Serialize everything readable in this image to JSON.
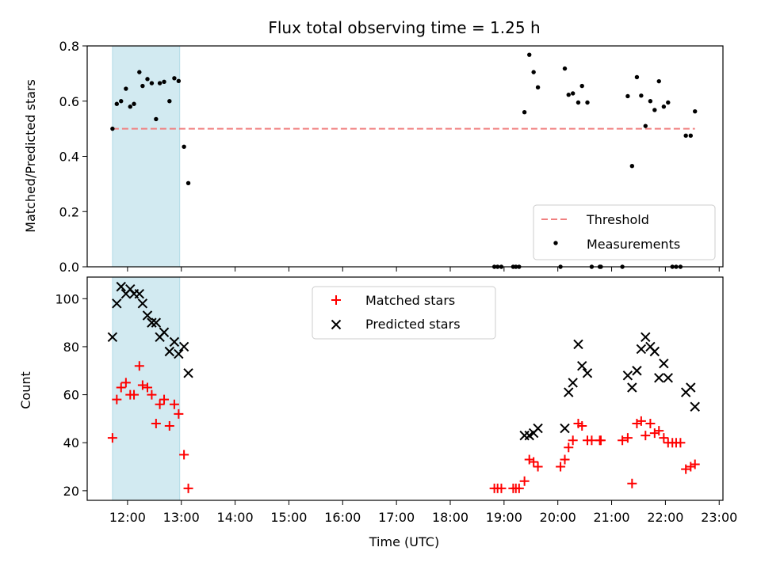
{
  "chart_data": [
    {
      "type": "scatter",
      "title": "Flux total observing time = 1.25 h",
      "xlabel": "",
      "ylabel": "Matched/Predicted stars",
      "ylim": [
        0,
        0.8
      ],
      "yticks": [
        0.0,
        0.2,
        0.4,
        0.6,
        0.8
      ],
      "ytick_labels": [
        "0.0",
        "0.2",
        "0.4",
        "0.6",
        "0.8"
      ],
      "xlim": [
        11.25,
        23.07
      ],
      "highlight_span": {
        "x": [
          11.72,
          12.97
        ],
        "color": "#add8e6"
      },
      "threshold": {
        "name": "Threshold",
        "y": 0.5,
        "x": [
          11.72,
          22.55
        ],
        "color": "#f08080"
      },
      "legend": {
        "placement": "lower-right",
        "entries": [
          "Threshold",
          "Measurements"
        ]
      },
      "series": [
        {
          "name": "Measurements",
          "color": "#000000",
          "points": [
            [
              11.72,
              0.5
            ],
            [
              11.8,
              0.59
            ],
            [
              11.88,
              0.6
            ],
            [
              11.97,
              0.645
            ],
            [
              12.05,
              0.58
            ],
            [
              12.12,
              0.59
            ],
            [
              12.22,
              0.705
            ],
            [
              12.28,
              0.655
            ],
            [
              12.37,
              0.68
            ],
            [
              12.45,
              0.665
            ],
            [
              12.53,
              0.535
            ],
            [
              12.6,
              0.665
            ],
            [
              12.68,
              0.67
            ],
            [
              12.78,
              0.6
            ],
            [
              12.87,
              0.683
            ],
            [
              12.95,
              0.673
            ],
            [
              13.05,
              0.435
            ],
            [
              13.13,
              0.303
            ],
            [
              18.82,
              0
            ],
            [
              18.88,
              0
            ],
            [
              18.95,
              0
            ],
            [
              19.17,
              0
            ],
            [
              19.22,
              0
            ],
            [
              19.28,
              0
            ],
            [
              19.38,
              0.56
            ],
            [
              19.47,
              0.768
            ],
            [
              19.55,
              0.705
            ],
            [
              19.63,
              0.65
            ],
            [
              20.05,
              0
            ],
            [
              20.13,
              0.718
            ],
            [
              20.2,
              0.623
            ],
            [
              20.28,
              0.628
            ],
            [
              20.38,
              0.595
            ],
            [
              20.45,
              0.655
            ],
            [
              20.55,
              0.595
            ],
            [
              20.63,
              0
            ],
            [
              20.78,
              0
            ],
            [
              20.8,
              0
            ],
            [
              21.2,
              0
            ],
            [
              21.3,
              0.618
            ],
            [
              21.38,
              0.365
            ],
            [
              21.47,
              0.687
            ],
            [
              21.55,
              0.62
            ],
            [
              21.63,
              0.51
            ],
            [
              21.72,
              0.6
            ],
            [
              21.8,
              0.568
            ],
            [
              21.88,
              0.672
            ],
            [
              21.97,
              0.58
            ],
            [
              22.05,
              0.595
            ],
            [
              22.13,
              0
            ],
            [
              22.2,
              0
            ],
            [
              22.28,
              0
            ],
            [
              22.38,
              0.475
            ],
            [
              22.47,
              0.475
            ],
            [
              22.55,
              0.563
            ]
          ]
        }
      ]
    },
    {
      "type": "scatter",
      "title": "",
      "xlabel": "Time (UTC)",
      "ylabel": "Count",
      "ylim": [
        16,
        109
      ],
      "yticks": [
        20,
        40,
        60,
        80,
        100
      ],
      "ytick_labels": [
        "20",
        "40",
        "60",
        "80",
        "100"
      ],
      "xlim": [
        11.25,
        23.07
      ],
      "xticks": [
        12,
        13,
        14,
        15,
        16,
        17,
        18,
        19,
        20,
        21,
        22,
        23
      ],
      "xtick_labels": [
        "12:00",
        "13:00",
        "14:00",
        "15:00",
        "16:00",
        "17:00",
        "18:00",
        "19:00",
        "20:00",
        "21:00",
        "22:00",
        "23:00"
      ],
      "highlight_span": {
        "x": [
          11.72,
          12.97
        ],
        "color": "#add8e6"
      },
      "legend": {
        "placement": "upper-center",
        "entries": [
          "Matched stars",
          "Predicted stars"
        ]
      },
      "series": [
        {
          "name": "Matched stars",
          "marker": "+",
          "color": "#ff0000",
          "points": [
            [
              11.72,
              42
            ],
            [
              11.8,
              58
            ],
            [
              11.88,
              63
            ],
            [
              11.97,
              65
            ],
            [
              12.05,
              60
            ],
            [
              12.12,
              60
            ],
            [
              12.22,
              72
            ],
            [
              12.28,
              64
            ],
            [
              12.37,
              63
            ],
            [
              12.45,
              60
            ],
            [
              12.53,
              48
            ],
            [
              12.6,
              56
            ],
            [
              12.68,
              58
            ],
            [
              12.78,
              47
            ],
            [
              12.87,
              56
            ],
            [
              12.95,
              52
            ],
            [
              13.05,
              35
            ],
            [
              13.13,
              21
            ],
            [
              18.82,
              21
            ],
            [
              18.88,
              21
            ],
            [
              18.95,
              21
            ],
            [
              19.17,
              21
            ],
            [
              19.22,
              21
            ],
            [
              19.28,
              21
            ],
            [
              19.38,
              24
            ],
            [
              19.47,
              33
            ],
            [
              19.55,
              32
            ],
            [
              19.63,
              30
            ],
            [
              20.05,
              30
            ],
            [
              20.13,
              33
            ],
            [
              20.2,
              38
            ],
            [
              20.28,
              41
            ],
            [
              20.38,
              48
            ],
            [
              20.45,
              47
            ],
            [
              20.55,
              41
            ],
            [
              20.63,
              41
            ],
            [
              20.78,
              41
            ],
            [
              20.8,
              41
            ],
            [
              21.2,
              41
            ],
            [
              21.3,
              42
            ],
            [
              21.38,
              23
            ],
            [
              21.47,
              48
            ],
            [
              21.55,
              49
            ],
            [
              21.63,
              43
            ],
            [
              21.72,
              48
            ],
            [
              21.8,
              44
            ],
            [
              21.88,
              45
            ],
            [
              21.97,
              42
            ],
            [
              22.05,
              40
            ],
            [
              22.13,
              40
            ],
            [
              22.2,
              40
            ],
            [
              22.28,
              40
            ],
            [
              22.38,
              29
            ],
            [
              22.47,
              30
            ],
            [
              22.55,
              31
            ]
          ]
        },
        {
          "name": "Predicted stars",
          "marker": "x",
          "color": "#000000",
          "points": [
            [
              11.72,
              84
            ],
            [
              11.8,
              98
            ],
            [
              11.88,
              105
            ],
            [
              11.97,
              102
            ],
            [
              12.05,
              104
            ],
            [
              12.12,
              102
            ],
            [
              12.22,
              102
            ],
            [
              12.28,
              98
            ],
            [
              12.37,
              93
            ],
            [
              12.45,
              90
            ],
            [
              12.53,
              90
            ],
            [
              12.6,
              84
            ],
            [
              12.68,
              86
            ],
            [
              12.78,
              78
            ],
            [
              12.87,
              82
            ],
            [
              12.95,
              77
            ],
            [
              13.05,
              80
            ],
            [
              13.13,
              69
            ],
            [
              19.38,
              43
            ],
            [
              19.47,
              43
            ],
            [
              19.55,
              44
            ],
            [
              19.63,
              46
            ],
            [
              20.13,
              46
            ],
            [
              20.2,
              61
            ],
            [
              20.28,
              65
            ],
            [
              20.38,
              81
            ],
            [
              20.45,
              72
            ],
            [
              20.55,
              69
            ],
            [
              21.3,
              68
            ],
            [
              21.38,
              63
            ],
            [
              21.47,
              70
            ],
            [
              21.55,
              79
            ],
            [
              21.63,
              84
            ],
            [
              21.72,
              80
            ],
            [
              21.8,
              78
            ],
            [
              21.88,
              67
            ],
            [
              21.97,
              73
            ],
            [
              22.05,
              67
            ],
            [
              22.38,
              61
            ],
            [
              22.47,
              63
            ],
            [
              22.55,
              55
            ]
          ]
        }
      ]
    }
  ]
}
